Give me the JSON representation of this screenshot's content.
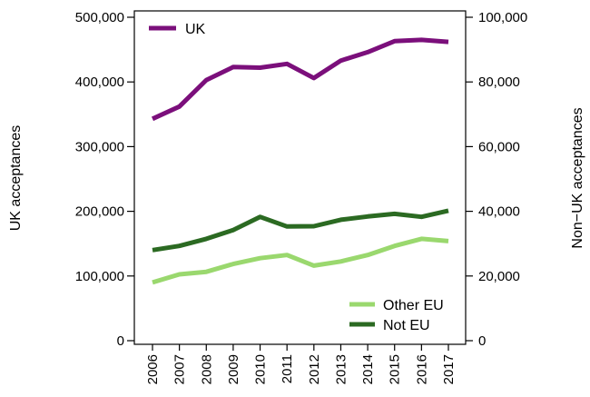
{
  "chart_data": {
    "type": "line",
    "x": [
      "2006",
      "2007",
      "2008",
      "2009",
      "2010",
      "2011",
      "2012",
      "2013",
      "2014",
      "2015",
      "2016",
      "2017"
    ],
    "left_axis": {
      "label": "UK acceptances",
      "range": [
        0,
        500000
      ],
      "ticks": [
        0,
        100000,
        200000,
        300000,
        400000,
        500000
      ],
      "tick_labels": [
        "0",
        "100,000",
        "200,000",
        "300,000",
        "400,000",
        "500,000"
      ]
    },
    "right_axis": {
      "label": "Non−UK acceptances",
      "range": [
        0,
        100000
      ],
      "ticks": [
        0,
        20000,
        40000,
        60000,
        80000,
        100000
      ],
      "tick_labels": [
        "0",
        "20,000",
        "40,000",
        "60,000",
        "80,000",
        "100,000"
      ]
    },
    "series": [
      {
        "name": "UK",
        "axis": "left",
        "color": "#7b0f7b",
        "values": [
          343000,
          362000,
          403000,
          423000,
          422000,
          428000,
          406000,
          433000,
          446000,
          463000,
          465000,
          462000
        ]
      },
      {
        "name": "Other EU",
        "axis": "right",
        "color": "#9ad86e",
        "values": [
          18000,
          20500,
          21300,
          23700,
          25500,
          26500,
          23200,
          24500,
          26500,
          29300,
          31500,
          30800
        ]
      },
      {
        "name": "Not EU",
        "axis": "right",
        "color": "#2b6a22",
        "values": [
          28000,
          29300,
          31500,
          34200,
          38300,
          35300,
          35400,
          37400,
          38400,
          39200,
          38300,
          40200
        ]
      }
    ],
    "legends": [
      {
        "position": "top-left",
        "entries": [
          "UK"
        ]
      },
      {
        "position": "bottom-right",
        "entries": [
          "Other EU",
          "Not EU"
        ]
      }
    ],
    "grid": false
  }
}
